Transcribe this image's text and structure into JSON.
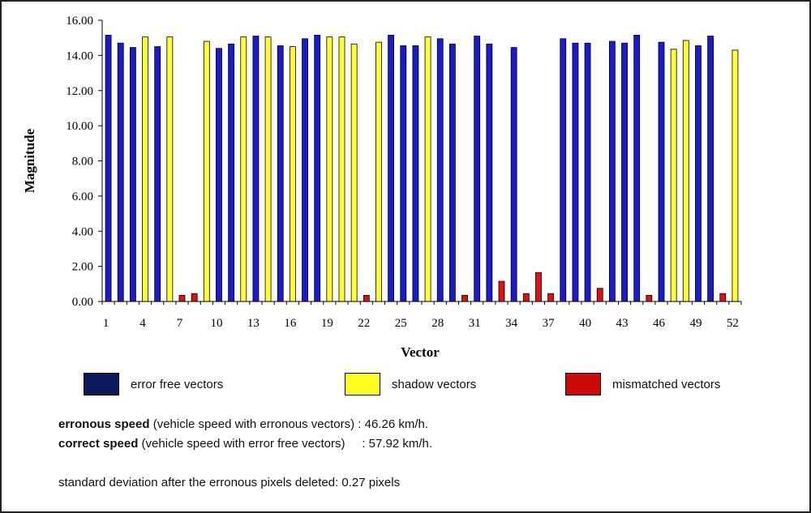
{
  "chart_data": {
    "type": "bar",
    "xlabel": "Vector",
    "ylabel": "Magnitude",
    "ylim": [
      0,
      16
    ],
    "y_ticks": [
      "0.00",
      "2.00",
      "4.00",
      "6.00",
      "8.00",
      "10.00",
      "12.00",
      "14.00",
      "16.00"
    ],
    "x_ticks": [
      "1",
      "4",
      "7",
      "10",
      "13",
      "16",
      "19",
      "22",
      "25",
      "28",
      "31",
      "34",
      "37",
      "40",
      "43",
      "46",
      "49",
      "52"
    ],
    "grid": false,
    "legend_position": "bottom",
    "categories": [
      1,
      2,
      3,
      4,
      5,
      6,
      7,
      8,
      9,
      10,
      11,
      12,
      13,
      14,
      15,
      16,
      17,
      18,
      19,
      20,
      21,
      22,
      23,
      24,
      25,
      26,
      27,
      28,
      29,
      30,
      31,
      32,
      33,
      34,
      35,
      36,
      37,
      38,
      39,
      40,
      41,
      42,
      43,
      44,
      45,
      46,
      47,
      48,
      49,
      50,
      51,
      52
    ],
    "values": [
      15.15,
      14.7,
      14.45,
      15.05,
      14.5,
      15.05,
      0.35,
      0.45,
      14.8,
      14.4,
      14.65,
      15.05,
      15.1,
      15.05,
      14.55,
      14.5,
      14.95,
      15.15,
      15.05,
      15.05,
      14.65,
      0.35,
      14.75,
      15.15,
      14.55,
      14.55,
      15.05,
      14.95,
      14.65,
      0.35,
      15.1,
      14.65,
      1.15,
      14.45,
      0.45,
      1.65,
      0.45,
      14.95,
      14.7,
      14.7,
      0.75,
      14.8,
      14.7,
      15.15,
      0.35,
      14.75,
      14.35,
      14.85,
      14.55,
      15.1,
      0.45,
      14.3
    ],
    "classes": [
      "error_free",
      "error_free",
      "error_free",
      "shadow",
      "error_free",
      "shadow",
      "mismatched",
      "mismatched",
      "shadow",
      "error_free",
      "error_free",
      "shadow",
      "error_free",
      "shadow",
      "error_free",
      "shadow",
      "error_free",
      "error_free",
      "shadow",
      "shadow",
      "shadow",
      "mismatched",
      "shadow",
      "error_free",
      "error_free",
      "error_free",
      "shadow",
      "error_free",
      "error_free",
      "mismatched",
      "error_free",
      "error_free",
      "mismatched",
      "error_free",
      "mismatched",
      "mismatched",
      "mismatched",
      "error_free",
      "error_free",
      "error_free",
      "mismatched",
      "error_free",
      "error_free",
      "error_free",
      "mismatched",
      "error_free",
      "shadow",
      "shadow",
      "error_free",
      "error_free",
      "mismatched",
      "shadow"
    ],
    "colors": {
      "error_free": "#1a1ad0",
      "shadow": "#ffff33",
      "mismatched": "#e01010"
    }
  },
  "legend": [
    {
      "key": "error_free",
      "label": "error free vectors",
      "color": "#0a1a5a"
    },
    {
      "key": "shadow",
      "label": "shadow vectors",
      "color": "#ffff22"
    },
    {
      "key": "mismatched",
      "label": "mismatched vectors",
      "color": "#cc0a0a"
    }
  ],
  "notes": {
    "erroneous_bold": "erronous speed",
    "erroneous_rest": " (vehicle speed with erronous vectors) : 46.26 km/h.",
    "correct_bold": "correct speed",
    "correct_rest": " (vehicle speed with error free vectors)     : 57.92 km/h.",
    "std_dev": "standard deviation after the erronous pixels deleted: 0.27 pixels"
  }
}
